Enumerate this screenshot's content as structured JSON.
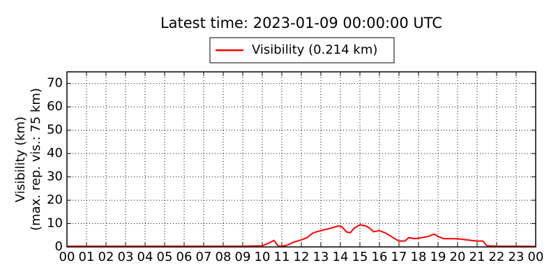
{
  "chart_data": {
    "type": "line",
    "title": "Latest time: 2023-01-09 00:00:00 UTC",
    "ylabel": [
      "Visibility (km)",
      "(max. rep. vis.: 75 km)"
    ],
    "x": [
      0,
      1,
      2,
      3,
      4,
      5,
      6,
      7,
      8,
      9,
      10,
      10.3,
      10.6,
      10.8,
      11,
      11.3,
      11.6,
      12,
      12.3,
      12.6,
      13,
      13.5,
      13.9,
      14.1,
      14.3,
      14.5,
      14.7,
      15,
      15.3,
      15.5,
      15.7,
      16,
      16.3,
      16.6,
      17,
      17.3,
      17.5,
      17.8,
      18.2,
      18.5,
      18.8,
      19,
      19.3,
      19.7,
      20,
      20.5,
      21,
      21.3,
      21.5,
      22,
      23,
      24
    ],
    "series": [
      {
        "name": "Visibility (0.214 km)",
        "color": "#ff0000",
        "values": [
          0.3,
          0.3,
          0.3,
          0.3,
          0.3,
          0.3,
          0.3,
          0.3,
          0.3,
          0.3,
          0.5,
          1.5,
          2.8,
          0.5,
          0.3,
          0.8,
          2,
          3,
          4,
          6,
          7,
          8,
          9,
          8.5,
          6.5,
          6,
          8,
          9.5,
          9,
          8,
          6.5,
          7,
          6,
          4.5,
          2.5,
          2.5,
          4,
          3.5,
          4,
          4.5,
          5.5,
          4.5,
          3.5,
          3.5,
          3.5,
          3,
          2.5,
          2.5,
          0.5,
          0.3,
          0.3,
          0.2
        ]
      }
    ],
    "xlim": [
      0,
      24
    ],
    "xticks": [
      {
        "value": 0,
        "label": "00"
      },
      {
        "value": 1,
        "label": "01"
      },
      {
        "value": 2,
        "label": "02"
      },
      {
        "value": 3,
        "label": "03"
      },
      {
        "value": 4,
        "label": "04"
      },
      {
        "value": 5,
        "label": "05"
      },
      {
        "value": 6,
        "label": "06"
      },
      {
        "value": 7,
        "label": "07"
      },
      {
        "value": 8,
        "label": "08"
      },
      {
        "value": 9,
        "label": "09"
      },
      {
        "value": 10,
        "label": "10"
      },
      {
        "value": 11,
        "label": "11"
      },
      {
        "value": 12,
        "label": "12"
      },
      {
        "value": 13,
        "label": "13"
      },
      {
        "value": 14,
        "label": "14"
      },
      {
        "value": 15,
        "label": "15"
      },
      {
        "value": 16,
        "label": "16"
      },
      {
        "value": 17,
        "label": "17"
      },
      {
        "value": 18,
        "label": "18"
      },
      {
        "value": 19,
        "label": "19"
      },
      {
        "value": 20,
        "label": "20"
      },
      {
        "value": 21,
        "label": "21"
      },
      {
        "value": 22,
        "label": "22"
      },
      {
        "value": 23,
        "label": "23"
      },
      {
        "value": 24,
        "label": "00"
      }
    ],
    "ylim": [
      0,
      75
    ],
    "yticks": [
      0,
      10,
      20,
      30,
      40,
      50,
      60,
      70
    ],
    "grid": true,
    "legend": "top"
  }
}
